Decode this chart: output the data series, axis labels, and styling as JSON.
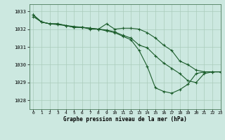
{
  "title": "Graphe pression niveau de la mer (hPa)",
  "bg_color": "#cce8e0",
  "grid_color": "#aaccbb",
  "line_color": "#1a5c2a",
  "xlim": [
    -0.5,
    23
  ],
  "ylim": [
    1027.5,
    1033.4
  ],
  "yticks": [
    1028,
    1029,
    1030,
    1031,
    1032,
    1033
  ],
  "xticks": [
    0,
    1,
    2,
    3,
    4,
    5,
    6,
    7,
    8,
    9,
    10,
    11,
    12,
    13,
    14,
    15,
    16,
    17,
    18,
    19,
    20,
    21,
    22,
    23
  ],
  "series1": [
    1032.8,
    1032.4,
    1032.3,
    1032.3,
    1032.2,
    1032.1,
    1032.1,
    1032.0,
    1032.0,
    1031.9,
    1031.8,
    1031.6,
    1031.4,
    1030.8,
    1029.9,
    1028.7,
    1028.5,
    1028.4,
    1028.6,
    1028.9,
    1029.5,
    1029.6,
    1029.6,
    1029.6
  ],
  "series2": [
    1032.7,
    1032.4,
    1032.3,
    1032.25,
    1032.2,
    1032.15,
    1032.1,
    1032.05,
    1032.0,
    1031.95,
    1031.85,
    1031.65,
    1031.5,
    1031.1,
    1030.95,
    1030.5,
    1030.1,
    1029.8,
    1029.5,
    1029.1,
    1029.0,
    1029.5,
    1029.6,
    1029.6
  ],
  "series3": [
    1032.8,
    1032.4,
    1032.3,
    1032.3,
    1032.2,
    1032.1,
    1032.1,
    1032.05,
    1032.0,
    1032.3,
    1032.0,
    1032.05,
    1032.05,
    1032.0,
    1031.8,
    1031.5,
    1031.1,
    1030.8,
    1030.2,
    1030.0,
    1029.7,
    1029.6,
    1029.6,
    1029.6
  ]
}
